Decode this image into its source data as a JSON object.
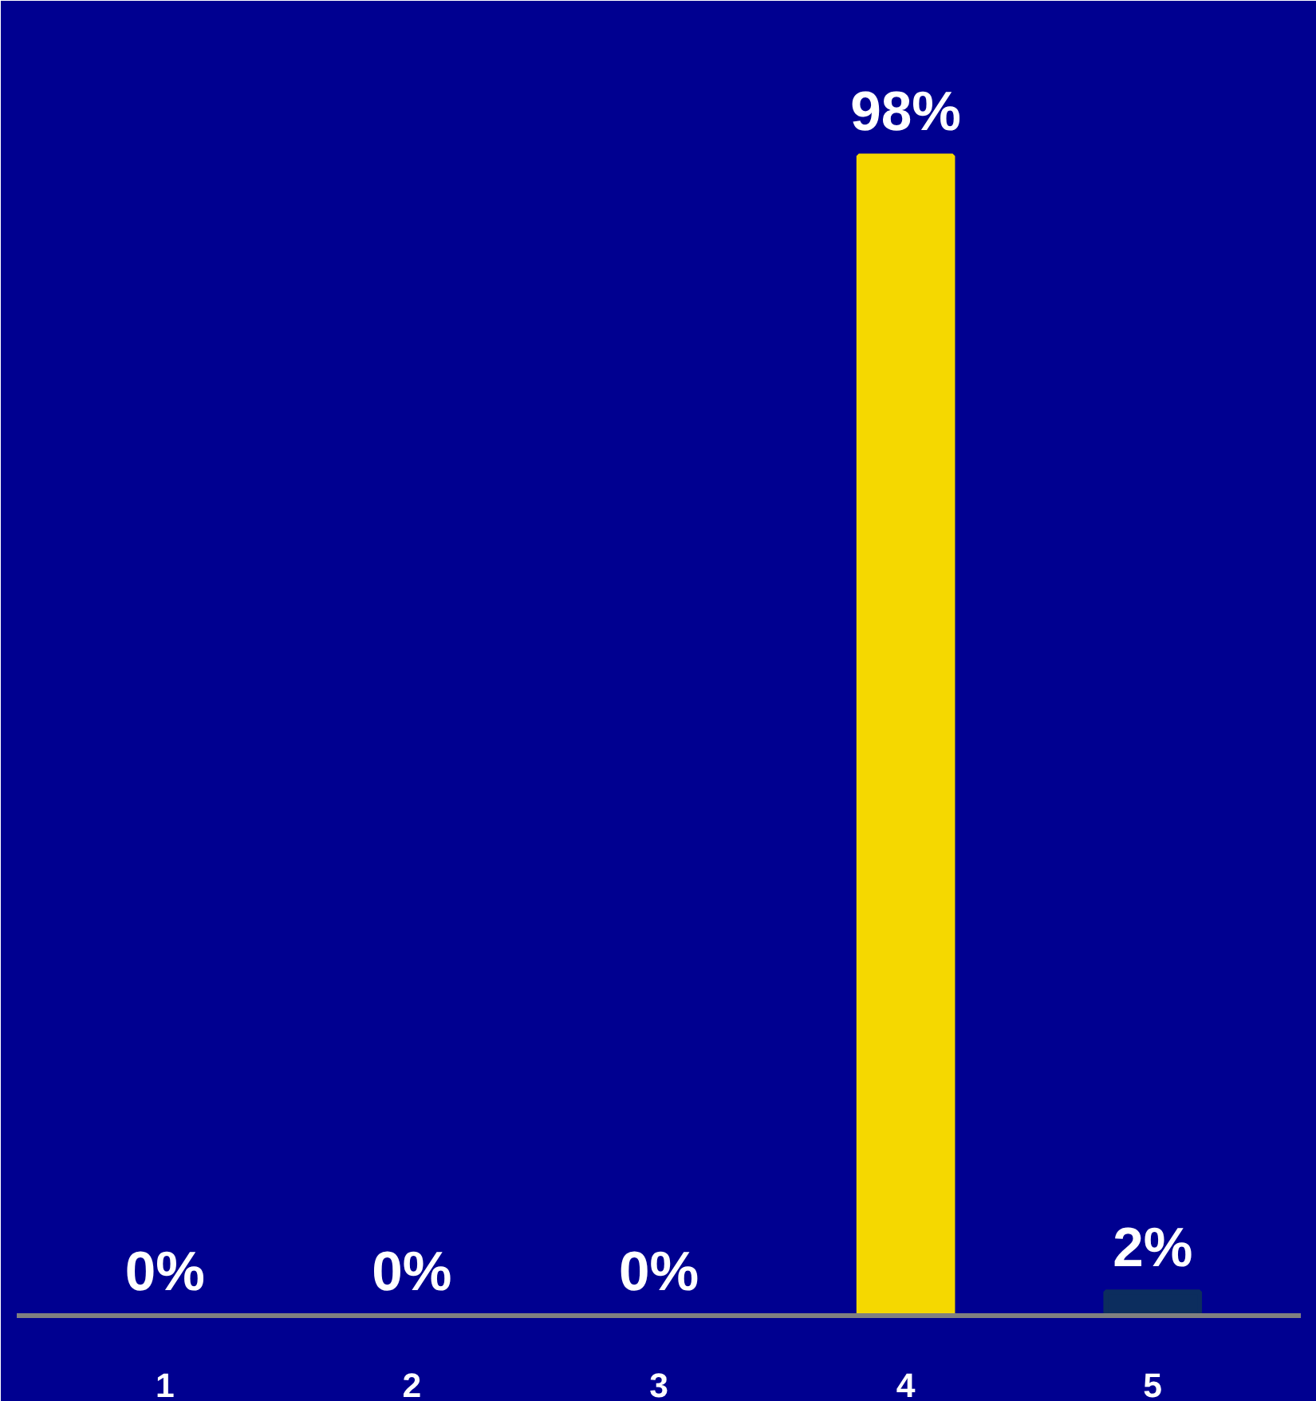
{
  "chart_data": {
    "type": "bar",
    "categories": [
      "1",
      "2",
      "3",
      "4",
      "5"
    ],
    "values": [
      0,
      0,
      0,
      98,
      2
    ],
    "colors": [
      "#2e4f9e",
      "#008000",
      "#4f9fc8",
      "#f5d800",
      "#0c2d5e"
    ],
    "value_labels": [
      "0%",
      "0%",
      "0%",
      "98%",
      "2%"
    ]
  }
}
